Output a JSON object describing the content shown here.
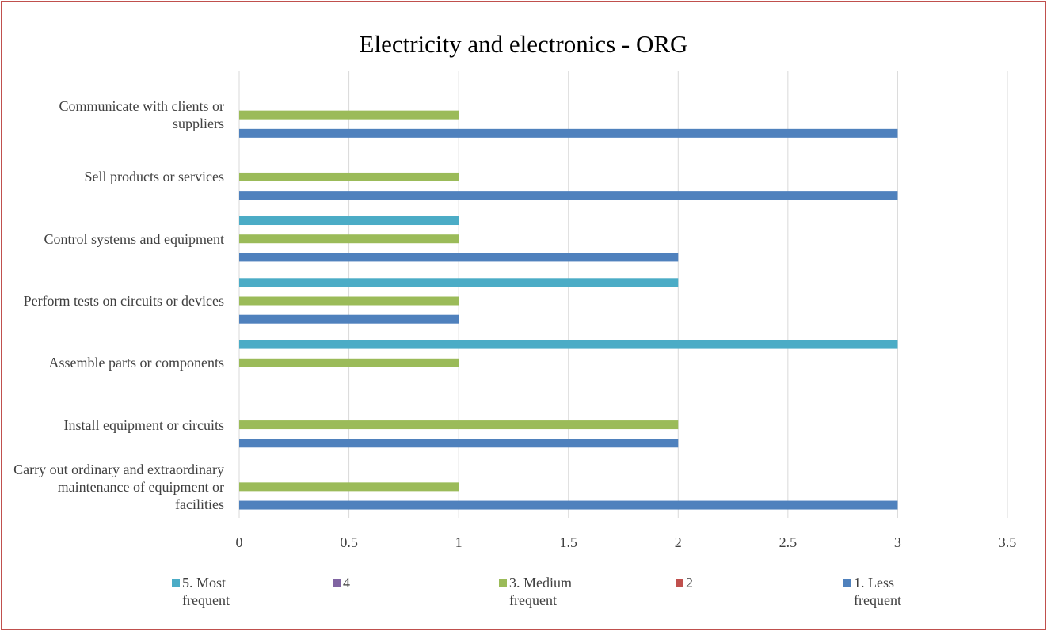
{
  "chart_data": {
    "type": "bar",
    "orientation": "horizontal",
    "title": "Electricity and electronics - ORG",
    "categories": [
      "Communicate with clients or suppliers",
      "Sell products or services",
      "Control systems and equipment",
      "Perform tests on circuits or devices",
      "Assemble parts or components",
      "Install equipment or circuits",
      "Carry out ordinary and extraordinary maintenance of equipment or facilities"
    ],
    "series": [
      {
        "name": "5. Most frequent",
        "color": "#4bacc6",
        "values": [
          null,
          null,
          1,
          2,
          3,
          null,
          null
        ]
      },
      {
        "name": "4",
        "color": "#8064a2",
        "values": [
          null,
          null,
          null,
          null,
          null,
          null,
          null
        ]
      },
      {
        "name": "3. Medium frequent",
        "color": "#9bbb59",
        "values": [
          1,
          1,
          1,
          1,
          1,
          2,
          1
        ]
      },
      {
        "name": "2",
        "color": "#c0504d",
        "values": [
          null,
          null,
          null,
          null,
          null,
          null,
          null
        ]
      },
      {
        "name": "1. Less frequent",
        "color": "#4f81bd",
        "values": [
          3,
          3,
          2,
          1,
          null,
          2,
          3
        ]
      }
    ],
    "xlim": [
      0,
      3.5
    ],
    "xticks": [
      0,
      0.5,
      1,
      1.5,
      2,
      2.5,
      3,
      3.5
    ],
    "grid": true
  }
}
